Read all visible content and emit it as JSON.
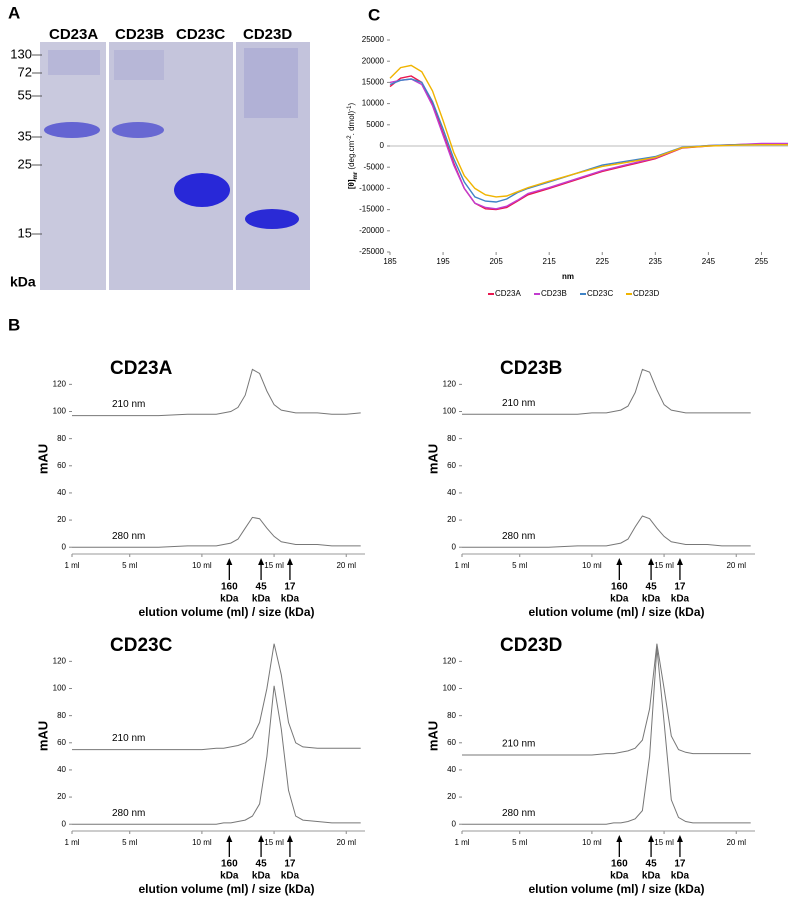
{
  "panels": {
    "a": "A",
    "b": "B",
    "c": "C"
  },
  "gel": {
    "lanes": [
      "CD23A",
      "CD23B",
      "CD23C",
      "CD23D"
    ],
    "markers": [
      130,
      72,
      55,
      35,
      25,
      15
    ],
    "unit": "kDa"
  },
  "chart_data": [
    {
      "type": "line",
      "x_label": "nm",
      "y_label": [
        "[θ]",
        "mr",
        " (deg.cm",
        "-2",
        ". dmol)",
        "-1",
        ")"
      ],
      "x": [
        185,
        187,
        189,
        191,
        193,
        195,
        197,
        199,
        201,
        203,
        205,
        207,
        209,
        211,
        215,
        220,
        225,
        230,
        235,
        240,
        245,
        250,
        255,
        260
      ],
      "series": [
        {
          "name": "CD23A",
          "color": "#e8174f",
          "values": [
            14000,
            16000,
            16500,
            15000,
            10000,
            3000,
            -4000,
            -10000,
            -13500,
            -14800,
            -15000,
            -14500,
            -13000,
            -11500,
            -10000,
            -8000,
            -6000,
            -4500,
            -3000,
            -500,
            0,
            300,
            500,
            500
          ]
        },
        {
          "name": "CD23B",
          "color": "#c23ccf",
          "values": [
            15000,
            15500,
            15800,
            14500,
            9500,
            2500,
            -4500,
            -10000,
            -13500,
            -14500,
            -14800,
            -14200,
            -12800,
            -11200,
            -9800,
            -7800,
            -5800,
            -4300,
            -2800,
            -400,
            100,
            300,
            600,
            600
          ]
        },
        {
          "name": "CD23C",
          "color": "#3f83c6",
          "values": [
            14500,
            15500,
            15800,
            15000,
            10500,
            4000,
            -3000,
            -8500,
            -12000,
            -13000,
            -13200,
            -12500,
            -11000,
            -10000,
            -8500,
            -6500,
            -4500,
            -3500,
            -2500,
            -300,
            100,
            300,
            300,
            300
          ]
        },
        {
          "name": "CD23D",
          "color": "#f0b400",
          "values": [
            16000,
            18500,
            19000,
            17500,
            13000,
            6000,
            -1500,
            -7000,
            -10000,
            -11500,
            -12000,
            -11800,
            -10800,
            -9800,
            -8300,
            -6500,
            -4800,
            -3800,
            -2700,
            -400,
            0,
            200,
            300,
            300
          ]
        }
      ],
      "xlim": [
        185,
        260
      ],
      "xticks": [
        185,
        195,
        205,
        215,
        225,
        235,
        245,
        255
      ],
      "ylim": [
        -25000,
        25000
      ],
      "yticks": [
        -25000,
        -20000,
        -15000,
        -10000,
        -5000,
        0,
        5000,
        10000,
        15000,
        20000,
        25000
      ]
    },
    {
      "type": "line",
      "title": "CD23A",
      "y_label": "mAU",
      "x_label": "elution volume (ml) / size (kDa)",
      "x": [
        1,
        3,
        5,
        7,
        9,
        10,
        11,
        11.5,
        12,
        12.5,
        13,
        13.5,
        14,
        14.5,
        15,
        15.5,
        16,
        16.5,
        17,
        18,
        19,
        20,
        21
      ],
      "series": [
        {
          "name": "210 nm",
          "color": "#777777",
          "values": [
            97,
            97,
            97,
            97,
            98,
            98,
            98,
            99,
            100,
            103,
            112,
            131,
            128,
            115,
            105,
            101,
            100,
            99,
            99,
            99,
            98,
            98,
            99
          ]
        },
        {
          "name": "280 nm",
          "color": "#777777",
          "values": [
            0,
            0,
            0,
            0,
            1,
            1,
            1,
            2,
            3,
            6,
            14,
            22,
            21,
            14,
            8,
            4,
            3,
            2,
            2,
            2,
            1,
            1,
            1
          ]
        }
      ],
      "xlim": [
        1,
        21.3
      ],
      "xticks": [
        {
          "value": 1,
          "label": "1 ml"
        },
        {
          "value": 5,
          "label": "5 ml"
        },
        {
          "value": 10,
          "label": "10 ml"
        },
        {
          "value": 15,
          "label": "15 ml"
        },
        {
          "value": 20,
          "label": "20 ml"
        }
      ],
      "ylim": [
        -5,
        135
      ],
      "yticks": [
        0,
        20,
        40,
        60,
        80,
        100,
        120
      ],
      "markers": [
        {
          "value": 11.9,
          "label": "160",
          "unit": "kDa"
        },
        {
          "value": 14.1,
          "label": "45",
          "unit": "kDa"
        },
        {
          "value": 16.1,
          "label": "17",
          "unit": "kDa"
        }
      ]
    },
    {
      "type": "line",
      "title": "CD23B",
      "y_label": "mAU",
      "x_label": "elution volume (ml) / size (kDa)",
      "x": [
        1,
        3,
        5,
        7,
        9,
        10,
        11,
        11.5,
        12,
        12.5,
        13,
        13.5,
        14,
        14.5,
        15,
        15.5,
        16,
        16.5,
        17,
        18,
        19,
        20,
        21
      ],
      "series": [
        {
          "name": "210 nm",
          "color": "#777777",
          "values": [
            98,
            98,
            98,
            98,
            98,
            99,
            99,
            100,
            101,
            104,
            114,
            131,
            129,
            116,
            105,
            101,
            100,
            99,
            99,
            99,
            99,
            99,
            99
          ]
        },
        {
          "name": "280 nm",
          "color": "#777777",
          "values": [
            0,
            0,
            0,
            0,
            1,
            1,
            1,
            2,
            3,
            6,
            15,
            23,
            21,
            14,
            8,
            4,
            3,
            2,
            2,
            2,
            1,
            1,
            1
          ]
        }
      ],
      "xlim": [
        1,
        21.3
      ],
      "xticks": [
        {
          "value": 1,
          "label": "1 ml"
        },
        {
          "value": 5,
          "label": "5 ml"
        },
        {
          "value": 10,
          "label": "10 ml"
        },
        {
          "value": 15,
          "label": "15 ml"
        },
        {
          "value": 20,
          "label": "20 ml"
        }
      ],
      "ylim": [
        -5,
        135
      ],
      "yticks": [
        0,
        20,
        40,
        60,
        80,
        100,
        120
      ],
      "markers": [
        {
          "value": 11.9,
          "label": "160",
          "unit": "kDa"
        },
        {
          "value": 14.1,
          "label": "45",
          "unit": "kDa"
        },
        {
          "value": 16.1,
          "label": "17",
          "unit": "kDa"
        }
      ]
    },
    {
      "type": "line",
      "title": "CD23C",
      "y_label": "mAU",
      "x_label": "elution volume (ml) / size (kDa)",
      "x": [
        1,
        3,
        5,
        7,
        9,
        10,
        11,
        11.5,
        12,
        12.5,
        13,
        13.5,
        14,
        14.5,
        15,
        15.5,
        16,
        16.5,
        17,
        18,
        19,
        20,
        21
      ],
      "series": [
        {
          "name": "210 nm",
          "color": "#777777",
          "values": [
            55,
            55,
            55,
            55,
            55,
            55,
            56,
            56,
            57,
            58,
            60,
            64,
            75,
            100,
            133,
            110,
            75,
            60,
            57,
            56,
            56,
            56,
            56
          ]
        },
        {
          "name": "280 nm",
          "color": "#777777",
          "values": [
            0,
            0,
            0,
            0,
            0,
            0,
            0,
            1,
            1,
            2,
            3,
            6,
            15,
            50,
            102,
            70,
            25,
            6,
            3,
            2,
            1,
            1,
            1
          ]
        }
      ],
      "xlim": [
        1,
        21.3
      ],
      "xticks": [
        {
          "value": 1,
          "label": "1 ml"
        },
        {
          "value": 5,
          "label": "5 ml"
        },
        {
          "value": 10,
          "label": "10 ml"
        },
        {
          "value": 15,
          "label": "15 ml"
        },
        {
          "value": 20,
          "label": "20 ml"
        }
      ],
      "ylim": [
        -5,
        135
      ],
      "yticks": [
        0,
        20,
        40,
        60,
        80,
        100,
        120
      ],
      "markers": [
        {
          "value": 11.9,
          "label": "160",
          "unit": "kDa"
        },
        {
          "value": 14.1,
          "label": "45",
          "unit": "kDa"
        },
        {
          "value": 16.1,
          "label": "17",
          "unit": "kDa"
        }
      ]
    },
    {
      "type": "line",
      "title": "CD23D",
      "y_label": "mAU",
      "x_label": "elution volume (ml) / size (kDa)",
      "x": [
        1,
        3,
        5,
        7,
        9,
        10,
        11,
        11.5,
        12,
        12.5,
        13,
        13.5,
        14,
        14.5,
        15,
        15.5,
        16,
        16.5,
        17,
        18,
        19,
        20,
        21
      ],
      "series": [
        {
          "name": "210 nm",
          "color": "#777777",
          "values": [
            51,
            51,
            51,
            51,
            51,
            51,
            52,
            52,
            53,
            54,
            56,
            62,
            85,
            133,
            100,
            65,
            55,
            53,
            52,
            52,
            52,
            52,
            52
          ]
        },
        {
          "name": "280 nm",
          "color": "#777777",
          "values": [
            0,
            0,
            0,
            0,
            0,
            0,
            0,
            1,
            1,
            2,
            4,
            10,
            50,
            130,
            75,
            18,
            5,
            2,
            1,
            1,
            1,
            1,
            1
          ]
        }
      ],
      "xlim": [
        1,
        21.3
      ],
      "xticks": [
        {
          "value": 1,
          "label": "1 ml"
        },
        {
          "value": 5,
          "label": "5 ml"
        },
        {
          "value": 10,
          "label": "10 ml"
        },
        {
          "value": 15,
          "label": "15 ml"
        },
        {
          "value": 20,
          "label": "20 ml"
        }
      ],
      "ylim": [
        -5,
        135
      ],
      "yticks": [
        0,
        20,
        40,
        60,
        80,
        100,
        120
      ],
      "markers": [
        {
          "value": 11.9,
          "label": "160",
          "unit": "kDa"
        },
        {
          "value": 14.1,
          "label": "45",
          "unit": "kDa"
        },
        {
          "value": 16.1,
          "label": "17",
          "unit": "kDa"
        }
      ]
    }
  ]
}
